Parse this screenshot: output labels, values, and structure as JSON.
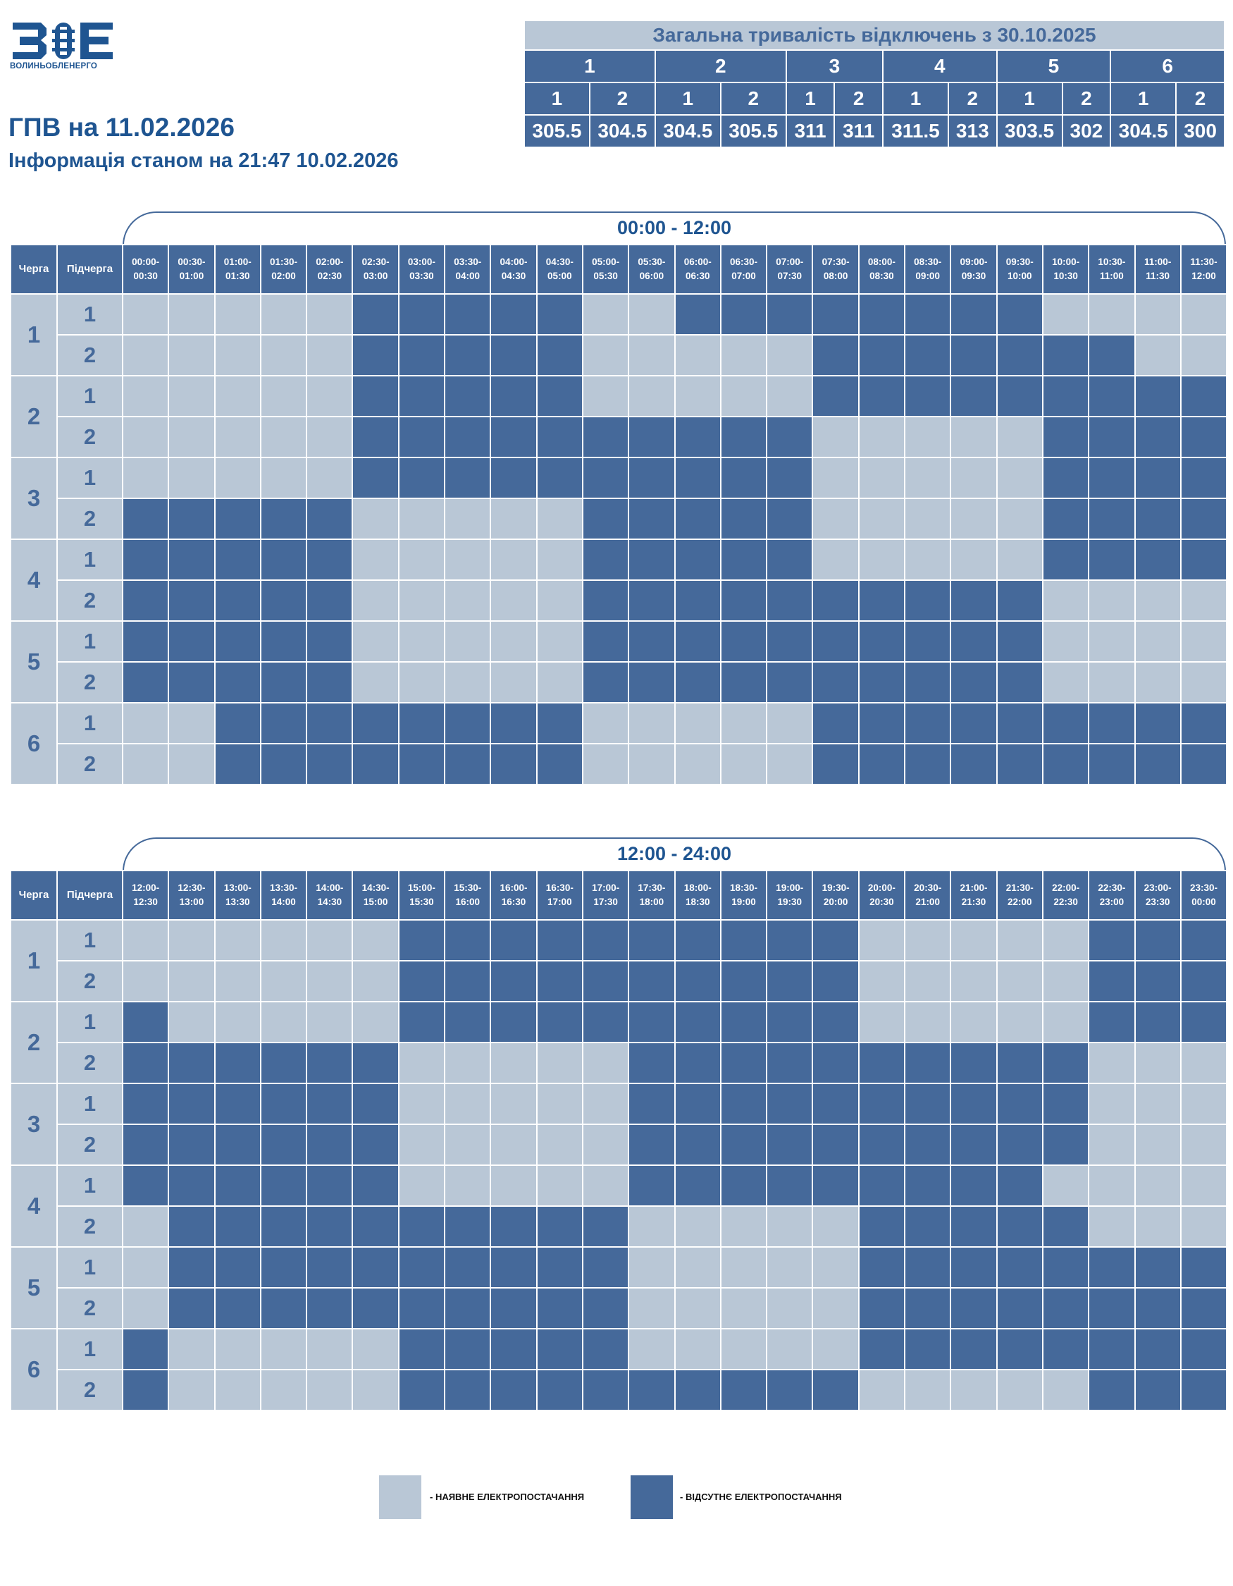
{
  "header": {
    "logo_text": "ВОЛИНЬОБЛЕНЕРГО",
    "title": "ГПВ на 11.02.2026",
    "subtitle": "Інформація станом на 21:47 10.02.2026",
    "colors": {
      "brand": "#1f5591",
      "dark": "#45699a",
      "light": "#b9c7d6"
    }
  },
  "summary": {
    "title": "Загальна тривалість відключень з 30.10.2025",
    "queues": [
      "1",
      "2",
      "3",
      "4",
      "5",
      "6"
    ],
    "subqueues": [
      "1",
      "2",
      "1",
      "2",
      "1",
      "2",
      "1",
      "2",
      "1",
      "2",
      "1",
      "2"
    ],
    "values": [
      "305.5",
      "304.5",
      "304.5",
      "305.5",
      "311",
      "311",
      "311.5",
      "313",
      "303.5",
      "302",
      "304.5",
      "300"
    ]
  },
  "columns": {
    "queue": "Черга",
    "subqueue": "Підчерга"
  },
  "blocks": [
    {
      "period": "00:00 - 12:00",
      "slots": [
        "00:00-00:30",
        "00:30-01:00",
        "01:00-01:30",
        "01:30-02:00",
        "02:00-02:30",
        "02:30-03:00",
        "03:00-03:30",
        "03:30-04:00",
        "04:00-04:30",
        "04:30-05:00",
        "05:00-05:30",
        "05:30-06:00",
        "06:00-06:30",
        "06:30-07:00",
        "07:00-07:30",
        "07:30-08:00",
        "08:00-08:30",
        "08:30-09:00",
        "09:00-09:30",
        "09:30-10:00",
        "10:00-10:30",
        "10:30-11:00",
        "11:00-11:30",
        "11:30-12:00"
      ],
      "rows": [
        {
          "queue": "1",
          "sub": "1",
          "pattern": "000001111100111111110000"
        },
        {
          "queue": "1",
          "sub": "2",
          "pattern": "000001111100000111111100"
        },
        {
          "queue": "2",
          "sub": "1",
          "pattern": "000001111100000111111111"
        },
        {
          "queue": "2",
          "sub": "2",
          "pattern": "000001111111111000001111"
        },
        {
          "queue": "3",
          "sub": "1",
          "pattern": "000001111111111000001111"
        },
        {
          "queue": "3",
          "sub": "2",
          "pattern": "111110000011111000001111"
        },
        {
          "queue": "4",
          "sub": "1",
          "pattern": "111110000011111000001111"
        },
        {
          "queue": "4",
          "sub": "2",
          "pattern": "111110000011111111110000"
        },
        {
          "queue": "5",
          "sub": "1",
          "pattern": "111110000011111111110000"
        },
        {
          "queue": "5",
          "sub": "2",
          "pattern": "111110000011111111110000"
        },
        {
          "queue": "6",
          "sub": "1",
          "pattern": "001111111100000111111111"
        },
        {
          "queue": "6",
          "sub": "2",
          "pattern": "001111111100000111111111"
        }
      ]
    },
    {
      "period": "12:00 - 24:00",
      "slots": [
        "12:00-12:30",
        "12:30-13:00",
        "13:00-13:30",
        "13:30-14:00",
        "14:00-14:30",
        "14:30-15:00",
        "15:00-15:30",
        "15:30-16:00",
        "16:00-16:30",
        "16:30-17:00",
        "17:00-17:30",
        "17:30-18:00",
        "18:00-18:30",
        "18:30-19:00",
        "19:00-19:30",
        "19:30-20:00",
        "20:00-20:30",
        "20:30-21:00",
        "21:00-21:30",
        "21:30-22:00",
        "22:00-22:30",
        "22:30-23:00",
        "23:00-23:30",
        "23:30-00:00"
      ],
      "rows": [
        {
          "queue": "1",
          "sub": "1",
          "pattern": "000000111111111100000111"
        },
        {
          "queue": "1",
          "sub": "2",
          "pattern": "000000111111111100000111"
        },
        {
          "queue": "2",
          "sub": "1",
          "pattern": "100000111111111100000111"
        },
        {
          "queue": "2",
          "sub": "2",
          "pattern": "111111000001111111111000"
        },
        {
          "queue": "3",
          "sub": "1",
          "pattern": "111111000001111111111000"
        },
        {
          "queue": "3",
          "sub": "2",
          "pattern": "111111000001111111111000"
        },
        {
          "queue": "4",
          "sub": "1",
          "pattern": "111111000001111111110000"
        },
        {
          "queue": "4",
          "sub": "2",
          "pattern": "011111111110000011111000"
        },
        {
          "queue": "5",
          "sub": "1",
          "pattern": "011111111110000011111111"
        },
        {
          "queue": "5",
          "sub": "2",
          "pattern": "011111111110000011111111"
        },
        {
          "queue": "6",
          "sub": "1",
          "pattern": "100000111110000011111111"
        },
        {
          "queue": "6",
          "sub": "2",
          "pattern": "100000111111111100000111"
        }
      ]
    }
  ],
  "legend": {
    "on_label": "- НАЯВНЕ ЕЛЕКТРОПОСТАЧАННЯ",
    "off_label": "- ВІДСУТНЄ ЕЛЕКТРОПОСТАЧАННЯ"
  }
}
